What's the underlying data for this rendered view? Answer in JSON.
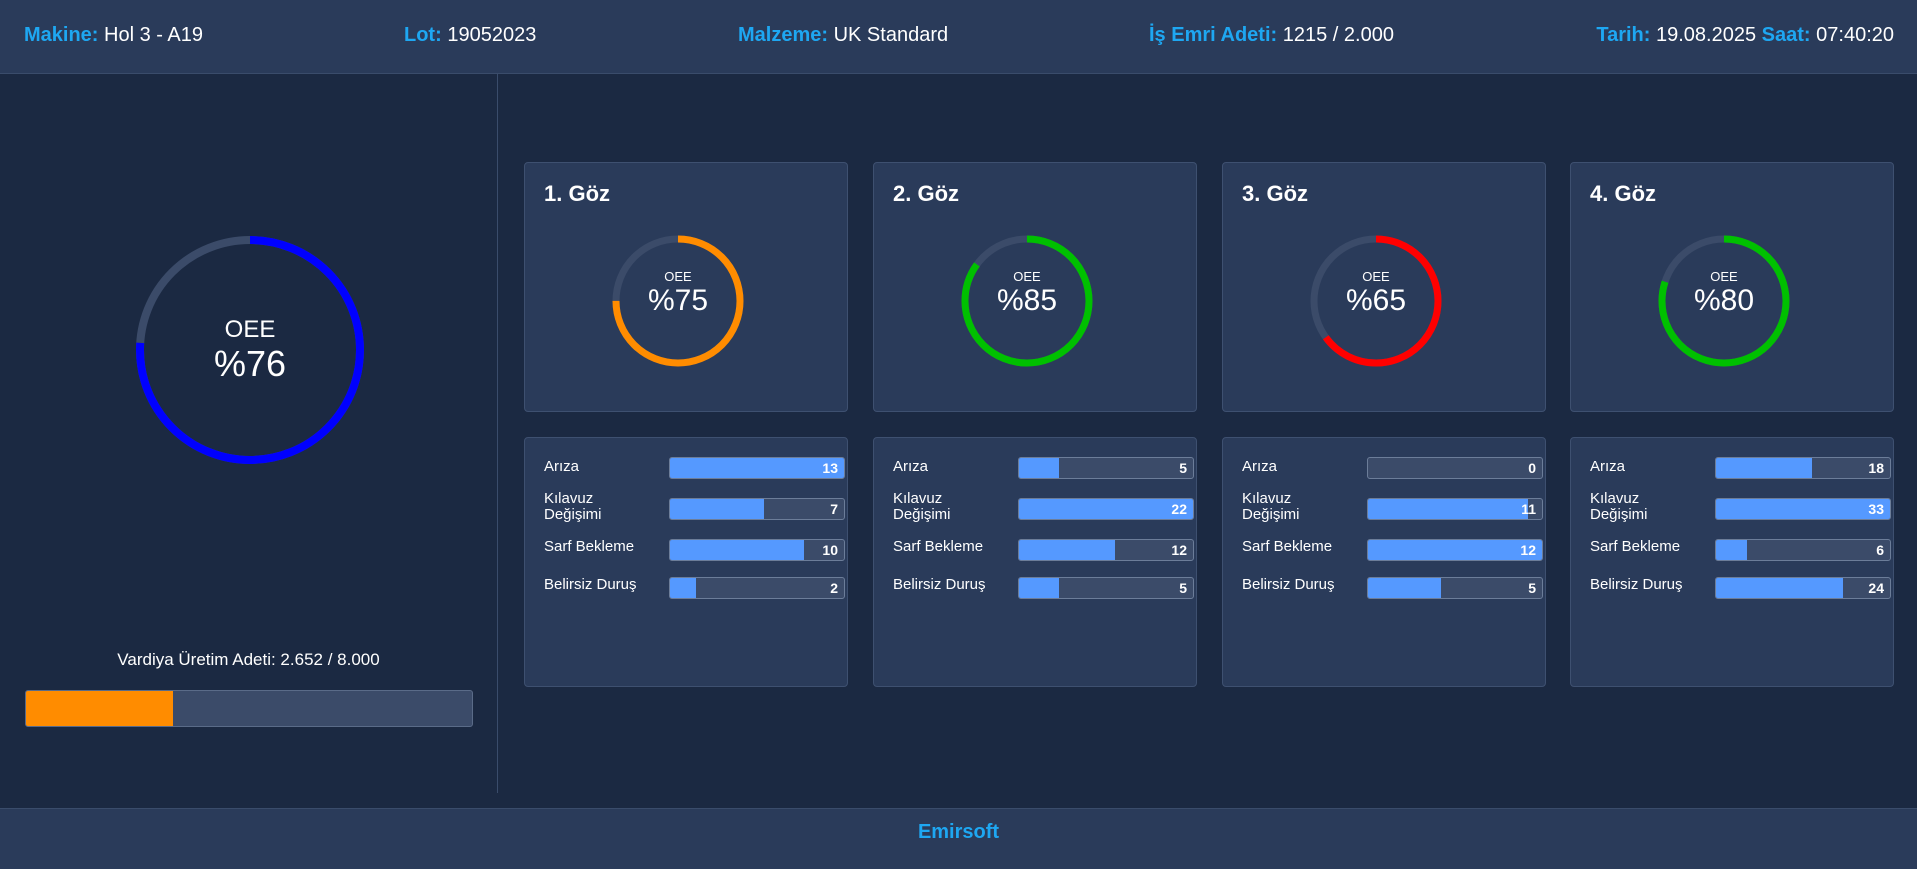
{
  "header": {
    "machine_label": "Makine:",
    "machine_value": "Hol 3 - A19",
    "lot_label": "Lot:",
    "lot_value": "19052023",
    "material_label": "Malzeme:",
    "material_value": "UK Standard",
    "order_label": "İş Emri Adeti:",
    "order_value": "1215 / 2.000",
    "date_label": "Tarih:",
    "date_value": "19.08.2025",
    "time_label": "Saat:",
    "time_value": "07:40:20"
  },
  "overall": {
    "title": "OEE",
    "value": "%76",
    "percent": 76,
    "color": "#0000ff",
    "shift_label": "Vardiya Üretim Adeti: 2.652 / 8.000",
    "shift_progress": 0.33,
    "shift_color": "#ff8c00"
  },
  "eyes": [
    {
      "title": "1. Göz",
      "oee_label": "OEE",
      "oee_value": "%75",
      "percent": 75,
      "color": "#ff8c00",
      "stops": [
        {
          "label": "Arıza",
          "value": "13",
          "fill": 1.0
        },
        {
          "label": "Kılavuz Değişimi",
          "value": "7",
          "fill": 0.54
        },
        {
          "label": "Sarf Bekleme",
          "value": "10",
          "fill": 0.77
        },
        {
          "label": "Belirsiz Duruş",
          "value": "2",
          "fill": 0.15
        }
      ]
    },
    {
      "title": "2. Göz",
      "oee_label": "OEE",
      "oee_value": "%85",
      "percent": 85,
      "color": "#00c000",
      "stops": [
        {
          "label": "Arıza",
          "value": "5",
          "fill": 0.23
        },
        {
          "label": "Kılavuz Değişimi",
          "value": "22",
          "fill": 1.0
        },
        {
          "label": "Sarf Bekleme",
          "value": "12",
          "fill": 0.55
        },
        {
          "label": "Belirsiz Duruş",
          "value": "5",
          "fill": 0.23
        }
      ]
    },
    {
      "title": "3. Göz",
      "oee_label": "OEE",
      "oee_value": "%65",
      "percent": 65,
      "color": "#ff0000",
      "stops": [
        {
          "label": "Arıza",
          "value": "0",
          "fill": 0.0
        },
        {
          "label": "Kılavuz Değişimi",
          "value": "11",
          "fill": 0.92
        },
        {
          "label": "Sarf Bekleme",
          "value": "12",
          "fill": 1.0
        },
        {
          "label": "Belirsiz Duruş",
          "value": "5",
          "fill": 0.42
        }
      ]
    },
    {
      "title": "4. Göz",
      "oee_label": "OEE",
      "oee_value": "%80",
      "percent": 80,
      "color": "#00c000",
      "stops": [
        {
          "label": "Arıza",
          "value": "18",
          "fill": 0.55
        },
        {
          "label": "Kılavuz Değişimi",
          "value": "33",
          "fill": 1.0
        },
        {
          "label": "Sarf Bekleme",
          "value": "6",
          "fill": 0.18
        },
        {
          "label": "Belirsiz Duruş",
          "value": "24",
          "fill": 0.73
        }
      ]
    }
  ],
  "footer": {
    "brand": "Emirsoft"
  }
}
